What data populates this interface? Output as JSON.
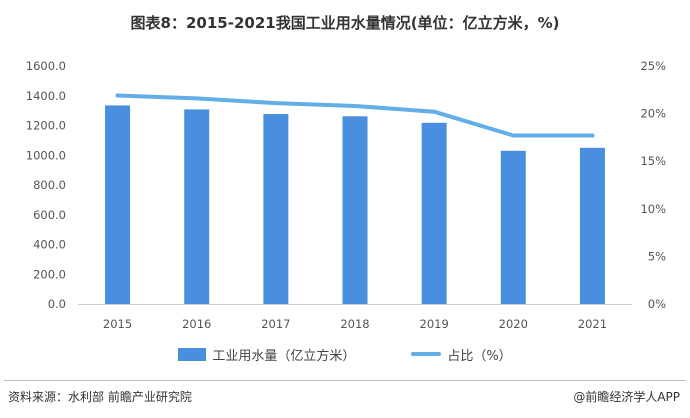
{
  "title": "图表8：2015-2021我国工业用水量情况(单位：亿立方米，%)",
  "chart_data": {
    "type": "bar",
    "categories": [
      "2015",
      "2016",
      "2017",
      "2018",
      "2019",
      "2020",
      "2021"
    ],
    "series": [
      {
        "name": "工业用水量（亿立方米）",
        "type": "bar",
        "axis": "left",
        "color": "#4a8fdf",
        "values": [
          1335,
          1308,
          1277,
          1262,
          1218,
          1030,
          1050
        ]
      },
      {
        "name": "占比（%）",
        "type": "line",
        "axis": "right",
        "color": "#62aee8",
        "values": [
          21.9,
          21.6,
          21.1,
          20.8,
          20.2,
          17.7,
          17.7
        ]
      }
    ],
    "y_left": {
      "ylim": [
        0,
        1600
      ],
      "tick_values": [
        0,
        200,
        400,
        600,
        800,
        1000,
        1200,
        1400,
        1600
      ],
      "tick_labels": [
        "0.0",
        "200.0",
        "400.0",
        "600.0",
        "800.0",
        "1000.0",
        "1200.0",
        "1400.0",
        "1600.0"
      ]
    },
    "y_right": {
      "ylim": [
        0,
        25
      ],
      "tick_values": [
        0,
        5,
        10,
        15,
        20,
        25
      ],
      "tick_labels": [
        "0%",
        "5%",
        "10%",
        "15%",
        "20%",
        "25%"
      ]
    },
    "grid": false,
    "legend_position": "bottom"
  },
  "footer": {
    "source": "资料来源：水利部 前瞻产业研究院",
    "brand": "@前瞻经济学人APP"
  }
}
